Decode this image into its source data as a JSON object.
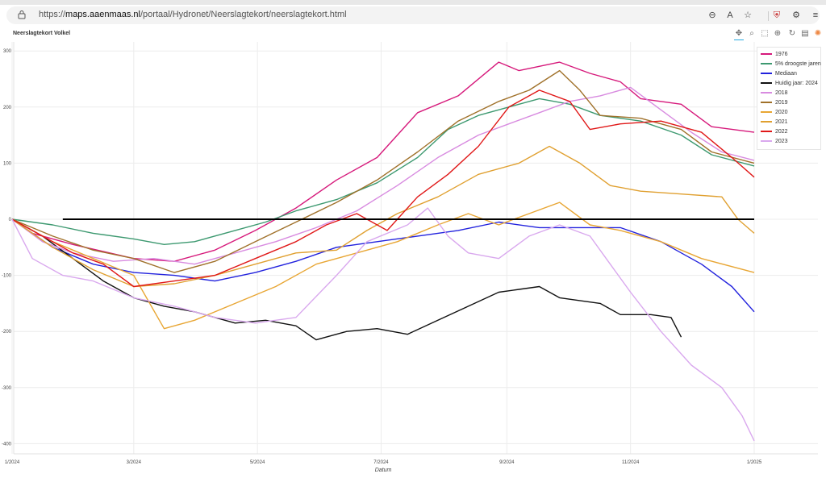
{
  "browser": {
    "url_prefix": "https://",
    "url_host": "maps.aaenmaas.nl",
    "url_path": "/portaal/Hydronet/Neerslagtekort/neerslagtekort.html"
  },
  "toolbar": {
    "tools": [
      "pan-icon",
      "box-zoom-icon",
      "box-select-icon",
      "wheel-zoom-icon",
      "reset-icon",
      "save-icon",
      "bokeh-logo-icon"
    ]
  },
  "colors": {
    "1976": "#d6197b",
    "5pct": "#3d9970",
    "mediaan": "#2222dd",
    "huidig": "#111111",
    "2018": "#d88be0",
    "2019": "#a0712a",
    "2020": "#e8a634",
    "2021": "#e0a030",
    "2022": "#e01818",
    "2023": "#d9a8ee"
  },
  "chart_data": {
    "type": "line",
    "title": "Neerslagtekort Volkel",
    "xlabel": "Datum",
    "ylabel": "",
    "ylim": [
      -410,
      310
    ],
    "xlim": [
      0,
      366
    ],
    "x_ticks": [
      {
        "day": 0,
        "label": "1/2024"
      },
      {
        "day": 60,
        "label": "3/2024"
      },
      {
        "day": 121,
        "label": "5/2024"
      },
      {
        "day": 182,
        "label": "7/2024"
      },
      {
        "day": 244,
        "label": "9/2024"
      },
      {
        "day": 305,
        "label": "11/2024"
      },
      {
        "day": 366,
        "label": "1/2025"
      }
    ],
    "y_ticks": [
      300,
      200,
      100,
      0,
      -100,
      -200,
      -300,
      -400
    ],
    "hline": {
      "y": 0,
      "from_day": 25,
      "to_day": 366
    },
    "legend_position": "top-right",
    "series": [
      {
        "name": "1976",
        "key": "1976",
        "points": [
          [
            0,
            0
          ],
          [
            10,
            -25
          ],
          [
            30,
            -45
          ],
          [
            60,
            -70
          ],
          [
            80,
            -75
          ],
          [
            100,
            -55
          ],
          [
            120,
            -20
          ],
          [
            140,
            20
          ],
          [
            160,
            70
          ],
          [
            180,
            110
          ],
          [
            200,
            190
          ],
          [
            220,
            220
          ],
          [
            240,
            280
          ],
          [
            250,
            265
          ],
          [
            270,
            280
          ],
          [
            285,
            260
          ],
          [
            300,
            245
          ],
          [
            310,
            215
          ],
          [
            330,
            205
          ],
          [
            345,
            165
          ],
          [
            366,
            155
          ]
        ]
      },
      {
        "name": "5% droogste jaren",
        "key": "5pct",
        "points": [
          [
            0,
            0
          ],
          [
            20,
            -10
          ],
          [
            40,
            -25
          ],
          [
            60,
            -35
          ],
          [
            75,
            -45
          ],
          [
            90,
            -40
          ],
          [
            110,
            -20
          ],
          [
            125,
            -5
          ],
          [
            140,
            15
          ],
          [
            160,
            35
          ],
          [
            180,
            65
          ],
          [
            200,
            110
          ],
          [
            215,
            160
          ],
          [
            230,
            185
          ],
          [
            245,
            200
          ],
          [
            260,
            215
          ],
          [
            275,
            205
          ],
          [
            290,
            185
          ],
          [
            310,
            175
          ],
          [
            330,
            150
          ],
          [
            345,
            115
          ],
          [
            366,
            95
          ]
        ]
      },
      {
        "name": "Mediaan",
        "key": "mediaan",
        "points": [
          [
            0,
            0
          ],
          [
            20,
            -50
          ],
          [
            40,
            -80
          ],
          [
            60,
            -95
          ],
          [
            80,
            -100
          ],
          [
            100,
            -110
          ],
          [
            120,
            -95
          ],
          [
            140,
            -75
          ],
          [
            160,
            -50
          ],
          [
            180,
            -40
          ],
          [
            200,
            -30
          ],
          [
            220,
            -20
          ],
          [
            240,
            -5
          ],
          [
            260,
            -15
          ],
          [
            280,
            -15
          ],
          [
            300,
            -15
          ],
          [
            320,
            -40
          ],
          [
            340,
            -80
          ],
          [
            355,
            -120
          ],
          [
            366,
            -165
          ]
        ]
      },
      {
        "name": "Huidig jaar: 2024",
        "key": "huidig",
        "points": [
          [
            0,
            0
          ],
          [
            15,
            -30
          ],
          [
            30,
            -70
          ],
          [
            45,
            -110
          ],
          [
            60,
            -140
          ],
          [
            75,
            -155
          ],
          [
            90,
            -165
          ],
          [
            110,
            -185
          ],
          [
            125,
            -180
          ],
          [
            140,
            -190
          ],
          [
            150,
            -215
          ],
          [
            165,
            -200
          ],
          [
            180,
            -195
          ],
          [
            195,
            -205
          ],
          [
            210,
            -180
          ],
          [
            225,
            -155
          ],
          [
            240,
            -130
          ],
          [
            250,
            -125
          ],
          [
            260,
            -120
          ],
          [
            270,
            -140
          ],
          [
            280,
            -145
          ],
          [
            290,
            -150
          ],
          [
            300,
            -170
          ],
          [
            315,
            -170
          ],
          [
            325,
            -175
          ],
          [
            330,
            -210
          ]
        ]
      },
      {
        "name": "2018",
        "key": "2018",
        "points": [
          [
            0,
            0
          ],
          [
            15,
            -40
          ],
          [
            30,
            -60
          ],
          [
            50,
            -75
          ],
          [
            70,
            -70
          ],
          [
            90,
            -80
          ],
          [
            110,
            -60
          ],
          [
            130,
            -40
          ],
          [
            150,
            -15
          ],
          [
            170,
            15
          ],
          [
            190,
            60
          ],
          [
            210,
            110
          ],
          [
            230,
            150
          ],
          [
            245,
            170
          ],
          [
            260,
            190
          ],
          [
            275,
            210
          ],
          [
            290,
            220
          ],
          [
            305,
            235
          ],
          [
            320,
            195
          ],
          [
            335,
            155
          ],
          [
            350,
            120
          ],
          [
            366,
            105
          ]
        ]
      },
      {
        "name": "2019",
        "key": "2019",
        "points": [
          [
            0,
            0
          ],
          [
            20,
            -30
          ],
          [
            40,
            -55
          ],
          [
            60,
            -70
          ],
          [
            80,
            -95
          ],
          [
            100,
            -75
          ],
          [
            120,
            -40
          ],
          [
            140,
            -5
          ],
          [
            160,
            30
          ],
          [
            180,
            70
          ],
          [
            200,
            120
          ],
          [
            220,
            175
          ],
          [
            240,
            210
          ],
          [
            255,
            230
          ],
          [
            270,
            265
          ],
          [
            280,
            230
          ],
          [
            290,
            185
          ],
          [
            310,
            180
          ],
          [
            330,
            160
          ],
          [
            345,
            120
          ],
          [
            366,
            100
          ]
        ]
      },
      {
        "name": "2020",
        "key": "2020",
        "points": [
          [
            0,
            0
          ],
          [
            20,
            -40
          ],
          [
            40,
            -70
          ],
          [
            60,
            -100
          ],
          [
            75,
            -195
          ],
          [
            90,
            -180
          ],
          [
            110,
            -150
          ],
          [
            130,
            -120
          ],
          [
            150,
            -80
          ],
          [
            170,
            -60
          ],
          [
            190,
            -40
          ],
          [
            210,
            -10
          ],
          [
            225,
            10
          ],
          [
            240,
            -10
          ],
          [
            255,
            10
          ],
          [
            270,
            30
          ],
          [
            285,
            -10
          ],
          [
            300,
            -20
          ],
          [
            320,
            -40
          ],
          [
            340,
            -70
          ],
          [
            366,
            -95
          ]
        ]
      },
      {
        "name": "2021",
        "key": "2021",
        "points": [
          [
            0,
            0
          ],
          [
            20,
            -50
          ],
          [
            40,
            -90
          ],
          [
            60,
            -120
          ],
          [
            80,
            -115
          ],
          [
            100,
            -100
          ],
          [
            120,
            -80
          ],
          [
            140,
            -60
          ],
          [
            160,
            -55
          ],
          [
            175,
            -20
          ],
          [
            190,
            10
          ],
          [
            210,
            40
          ],
          [
            230,
            80
          ],
          [
            250,
            100
          ],
          [
            265,
            130
          ],
          [
            280,
            100
          ],
          [
            295,
            60
          ],
          [
            310,
            50
          ],
          [
            330,
            45
          ],
          [
            350,
            40
          ],
          [
            358,
            0
          ],
          [
            366,
            -25
          ]
        ]
      },
      {
        "name": "2022",
        "key": "2022",
        "points": [
          [
            0,
            0
          ],
          [
            15,
            -30
          ],
          [
            30,
            -60
          ],
          [
            45,
            -80
          ],
          [
            60,
            -120
          ],
          [
            80,
            -110
          ],
          [
            100,
            -100
          ],
          [
            120,
            -70
          ],
          [
            140,
            -40
          ],
          [
            155,
            -10
          ],
          [
            170,
            10
          ],
          [
            185,
            -20
          ],
          [
            200,
            40
          ],
          [
            215,
            80
          ],
          [
            230,
            130
          ],
          [
            245,
            200
          ],
          [
            260,
            230
          ],
          [
            275,
            210
          ],
          [
            285,
            160
          ],
          [
            300,
            170
          ],
          [
            320,
            175
          ],
          [
            340,
            155
          ],
          [
            355,
            110
          ],
          [
            366,
            75
          ]
        ]
      },
      {
        "name": "2023",
        "key": "2023",
        "points": [
          [
            0,
            0
          ],
          [
            10,
            -70
          ],
          [
            25,
            -100
          ],
          [
            40,
            -110
          ],
          [
            60,
            -140
          ],
          [
            80,
            -155
          ],
          [
            100,
            -175
          ],
          [
            120,
            -185
          ],
          [
            140,
            -175
          ],
          [
            160,
            -100
          ],
          [
            175,
            -40
          ],
          [
            195,
            -10
          ],
          [
            205,
            20
          ],
          [
            215,
            -30
          ],
          [
            225,
            -60
          ],
          [
            240,
            -70
          ],
          [
            255,
            -30
          ],
          [
            270,
            -10
          ],
          [
            285,
            -30
          ],
          [
            295,
            -80
          ],
          [
            305,
            -130
          ],
          [
            320,
            -200
          ],
          [
            335,
            -260
          ],
          [
            350,
            -300
          ],
          [
            360,
            -350
          ],
          [
            366,
            -395
          ]
        ]
      }
    ]
  }
}
